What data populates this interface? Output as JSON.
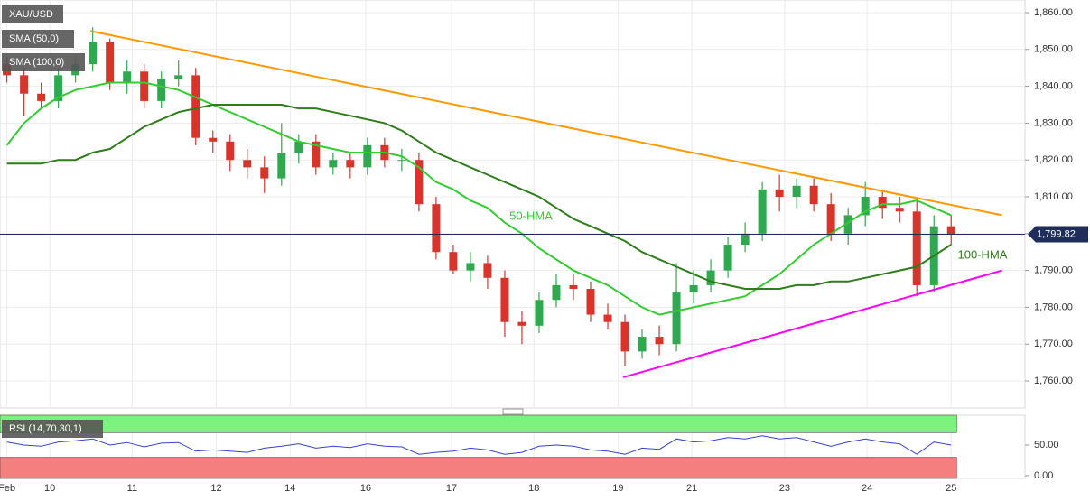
{
  "chart_data": [
    {
      "type": "candlestick",
      "title": "XAU/USD",
      "indicators": [
        "SMA (50,0)",
        "SMA (100,0)"
      ],
      "open": [
        1846,
        1843,
        1838,
        1836,
        1843,
        1846,
        1852,
        1841,
        1844,
        1836,
        1842,
        1843,
        1826,
        1825,
        1820,
        1818,
        1815,
        1822,
        1825,
        1818,
        1820,
        1818,
        1824,
        1820,
        1820,
        1808,
        1795,
        1790,
        1792,
        1788,
        1776,
        1775,
        1782,
        1786,
        1785,
        1778,
        1776,
        1768,
        1772,
        1770,
        1784,
        1786,
        1790,
        1797,
        1800,
        1812,
        1810,
        1813,
        1808,
        1800,
        1805,
        1810,
        1807,
        1806,
        1786,
        1802
      ],
      "high": [
        1848,
        1845,
        1841,
        1845,
        1848,
        1856,
        1853,
        1847,
        1846,
        1844,
        1847,
        1845,
        1828,
        1827,
        1823,
        1821,
        1830,
        1827,
        1827,
        1822,
        1822,
        1826,
        1826,
        1823,
        1822,
        1810,
        1797,
        1795,
        1794,
        1790,
        1779,
        1784,
        1789,
        1789,
        1787,
        1781,
        1778,
        1774,
        1775,
        1792,
        1790,
        1793,
        1799,
        1803,
        1814,
        1816,
        1815,
        1815,
        1811,
        1807,
        1814,
        1812,
        1810,
        1809,
        1805,
        1805
      ],
      "low": [
        1841,
        1832,
        1834,
        1834,
        1841,
        1844,
        1839,
        1838,
        1834,
        1834,
        1840,
        1824,
        1822,
        1817,
        1815,
        1811,
        1813,
        1819,
        1816,
        1816,
        1815,
        1816,
        1818,
        1817,
        1806,
        1793,
        1789,
        1787,
        1785,
        1772,
        1770,
        1773,
        1780,
        1782,
        1776,
        1774,
        1764,
        1766,
        1767,
        1768,
        1781,
        1784,
        1788,
        1795,
        1798,
        1806,
        1807,
        1806,
        1798,
        1797,
        1802,
        1804,
        1803,
        1783,
        1784,
        1797
      ],
      "close": [
        1843,
        1838,
        1836,
        1843,
        1846,
        1852,
        1841,
        1844,
        1836,
        1842,
        1843,
        1826,
        1825,
        1820,
        1818,
        1815,
        1822,
        1825,
        1818,
        1820,
        1818,
        1824,
        1820,
        1820,
        1808,
        1795,
        1790,
        1792,
        1788,
        1776,
        1775,
        1782,
        1786,
        1785,
        1778,
        1776,
        1768,
        1772,
        1770,
        1784,
        1786,
        1790,
        1797,
        1800,
        1812,
        1810,
        1813,
        1808,
        1800,
        1805,
        1810,
        1807,
        1806,
        1786,
        1802,
        1799.82
      ],
      "up_color": "#2fa84f",
      "down_color": "#d9342b",
      "series": [
        {
          "name": "50-HMA",
          "color": "#33cc33",
          "values": [
            1824,
            1830,
            1834,
            1837,
            1839,
            1840,
            1841,
            1841,
            1841,
            1840,
            1839,
            1837,
            1835,
            1833,
            1831,
            1829,
            1827,
            1825,
            1824,
            1823,
            1822,
            1822,
            1822,
            1821,
            1818,
            1814,
            1812,
            1809,
            1807,
            1803,
            1800,
            1796,
            1793,
            1790,
            1788,
            1786,
            1783,
            1780,
            1778,
            1779,
            1780,
            1781,
            1782,
            1783,
            1786,
            1789,
            1793,
            1797,
            1800,
            1803,
            1806,
            1808,
            1808,
            1809,
            1807,
            1805
          ]
        },
        {
          "name": "100-HMA",
          "color": "#2e7d1a",
          "values": [
            1819,
            1819,
            1819,
            1820,
            1820,
            1822,
            1823,
            1826,
            1829,
            1831,
            1833,
            1834,
            1835,
            1835,
            1835,
            1835,
            1835,
            1834,
            1834,
            1833,
            1832,
            1831,
            1830,
            1828,
            1825,
            1822,
            1820,
            1818,
            1816,
            1814,
            1812,
            1810,
            1807,
            1804,
            1802,
            1800,
            1798,
            1795,
            1793,
            1791,
            1789,
            1787,
            1786,
            1785,
            1785,
            1785,
            1786,
            1786,
            1787,
            1787,
            1788,
            1789,
            1790,
            1791,
            1794,
            1797
          ]
        }
      ],
      "trendlines": [
        {
          "color": "#ff9900",
          "x": [
            4.86,
            57.97
          ],
          "y": [
            1855,
            1805
          ]
        },
        {
          "color": "#ff00ff",
          "x": [
            35.9,
            57.97
          ],
          "y": [
            1761,
            1790
          ]
        }
      ],
      "last_price": {
        "value": 1799.82,
        "label": "1,799.82"
      },
      "xlim": [
        -0.4,
        59.3
      ],
      "xticks": [
        {
          "value": 0,
          "label": "Feb"
        },
        {
          "value": 2.5,
          "label": "10"
        },
        {
          "value": 7.3,
          "label": "11"
        },
        {
          "value": 12.2,
          "label": "12"
        },
        {
          "value": 16.5,
          "label": "14"
        },
        {
          "value": 20.9,
          "label": "16"
        },
        {
          "value": 25.9,
          "label": "17"
        },
        {
          "value": 30.7,
          "label": "18"
        },
        {
          "value": 35.6,
          "label": "19"
        },
        {
          "value": 39.9,
          "label": "21"
        },
        {
          "value": 45.3,
          "label": "23"
        },
        {
          "value": 50.1,
          "label": "24"
        },
        {
          "value": 55,
          "label": "25"
        }
      ],
      "ylim": [
        1752.65,
        1863.43
      ],
      "yticks": [
        {
          "value": 1760,
          "label": "1,760.00"
        },
        {
          "value": 1770,
          "label": "1,770.00"
        },
        {
          "value": 1780,
          "label": "1,780.00"
        },
        {
          "value": 1790,
          "label": "1,790.00"
        },
        {
          "value": 1800,
          "label": "1,800.00"
        },
        {
          "value": 1810,
          "label": "1,810.00"
        },
        {
          "value": 1820,
          "label": "1,820.00"
        },
        {
          "value": 1830,
          "label": "1,830.00"
        },
        {
          "value": 1840,
          "label": "1,840.00"
        },
        {
          "value": 1850,
          "label": "1,850.00"
        },
        {
          "value": 1860,
          "label": "1,860.00"
        }
      ],
      "grid": true
    },
    {
      "type": "line",
      "title": "RSI (14,70,30,1)",
      "color": "#3344cc",
      "values": [
        55,
        50,
        48,
        55,
        57,
        60,
        50,
        54,
        47,
        53,
        54,
        40,
        42,
        40,
        38,
        45,
        48,
        52,
        45,
        48,
        46,
        52,
        48,
        47,
        35,
        38,
        40,
        45,
        42,
        35,
        38,
        48,
        50,
        48,
        42,
        40,
        35,
        45,
        43,
        60,
        55,
        57,
        62,
        60,
        65,
        60,
        62,
        55,
        48,
        55,
        60,
        55,
        52,
        35,
        55,
        50
      ],
      "bands": [
        {
          "from": 70,
          "to": 98.5,
          "color": "#7ef27e"
        },
        {
          "from": -4.5,
          "to": 30,
          "color": "#f57f7f"
        }
      ],
      "ylim": [
        -4.5,
        98.5
      ],
      "yticks": [
        {
          "value": 0,
          "label": "0.00"
        },
        {
          "value": 50,
          "label": "50.00"
        }
      ]
    }
  ]
}
